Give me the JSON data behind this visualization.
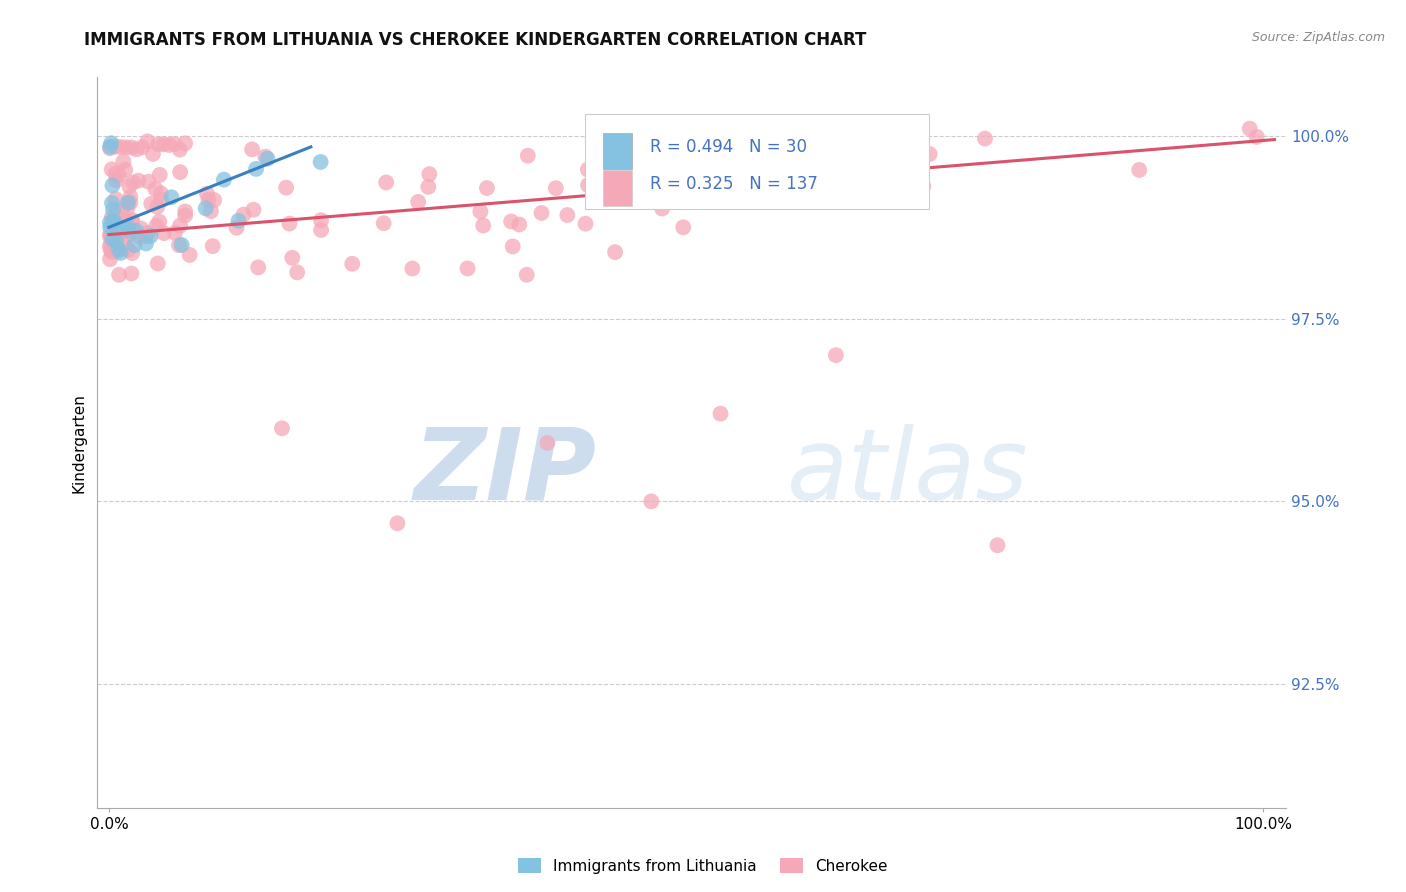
{
  "title": "IMMIGRANTS FROM LITHUANIA VS CHEROKEE KINDERGARTEN CORRELATION CHART",
  "source_text": "Source: ZipAtlas.com",
  "ylabel": "Kindergarten",
  "watermark_zip": "ZIP",
  "watermark_atlas": "atlas",
  "y_tick_values": [
    0.925,
    0.95,
    0.975,
    1.0
  ],
  "y_tick_labels": [
    "92.5%",
    "95.0%",
    "97.5%",
    "100.0%"
  ],
  "xlim": [
    -0.01,
    1.02
  ],
  "ylim": [
    0.908,
    1.008
  ],
  "legend_blue_r": "R = 0.494",
  "legend_blue_n": "N = 30",
  "legend_pink_r": "R = 0.325",
  "legend_pink_n": "N = 137",
  "legend_label_blue": "Immigrants from Lithuania",
  "legend_label_pink": "Cherokee",
  "blue_color": "#85c1e0",
  "pink_color": "#f5a8b8",
  "blue_line_color": "#3a7fbf",
  "pink_line_color": "#d9536b",
  "blue_trend_x": [
    0.0,
    0.175
  ],
  "blue_trend_y": [
    0.9875,
    0.9985
  ],
  "pink_trend_x": [
    0.0,
    1.01
  ],
  "pink_trend_y": [
    0.9865,
    0.9995
  ],
  "title_fontsize": 12,
  "tick_fontsize": 11,
  "ylabel_fontsize": 11,
  "legend_fontsize": 12,
  "source_fontsize": 9,
  "scatter_size": 130
}
